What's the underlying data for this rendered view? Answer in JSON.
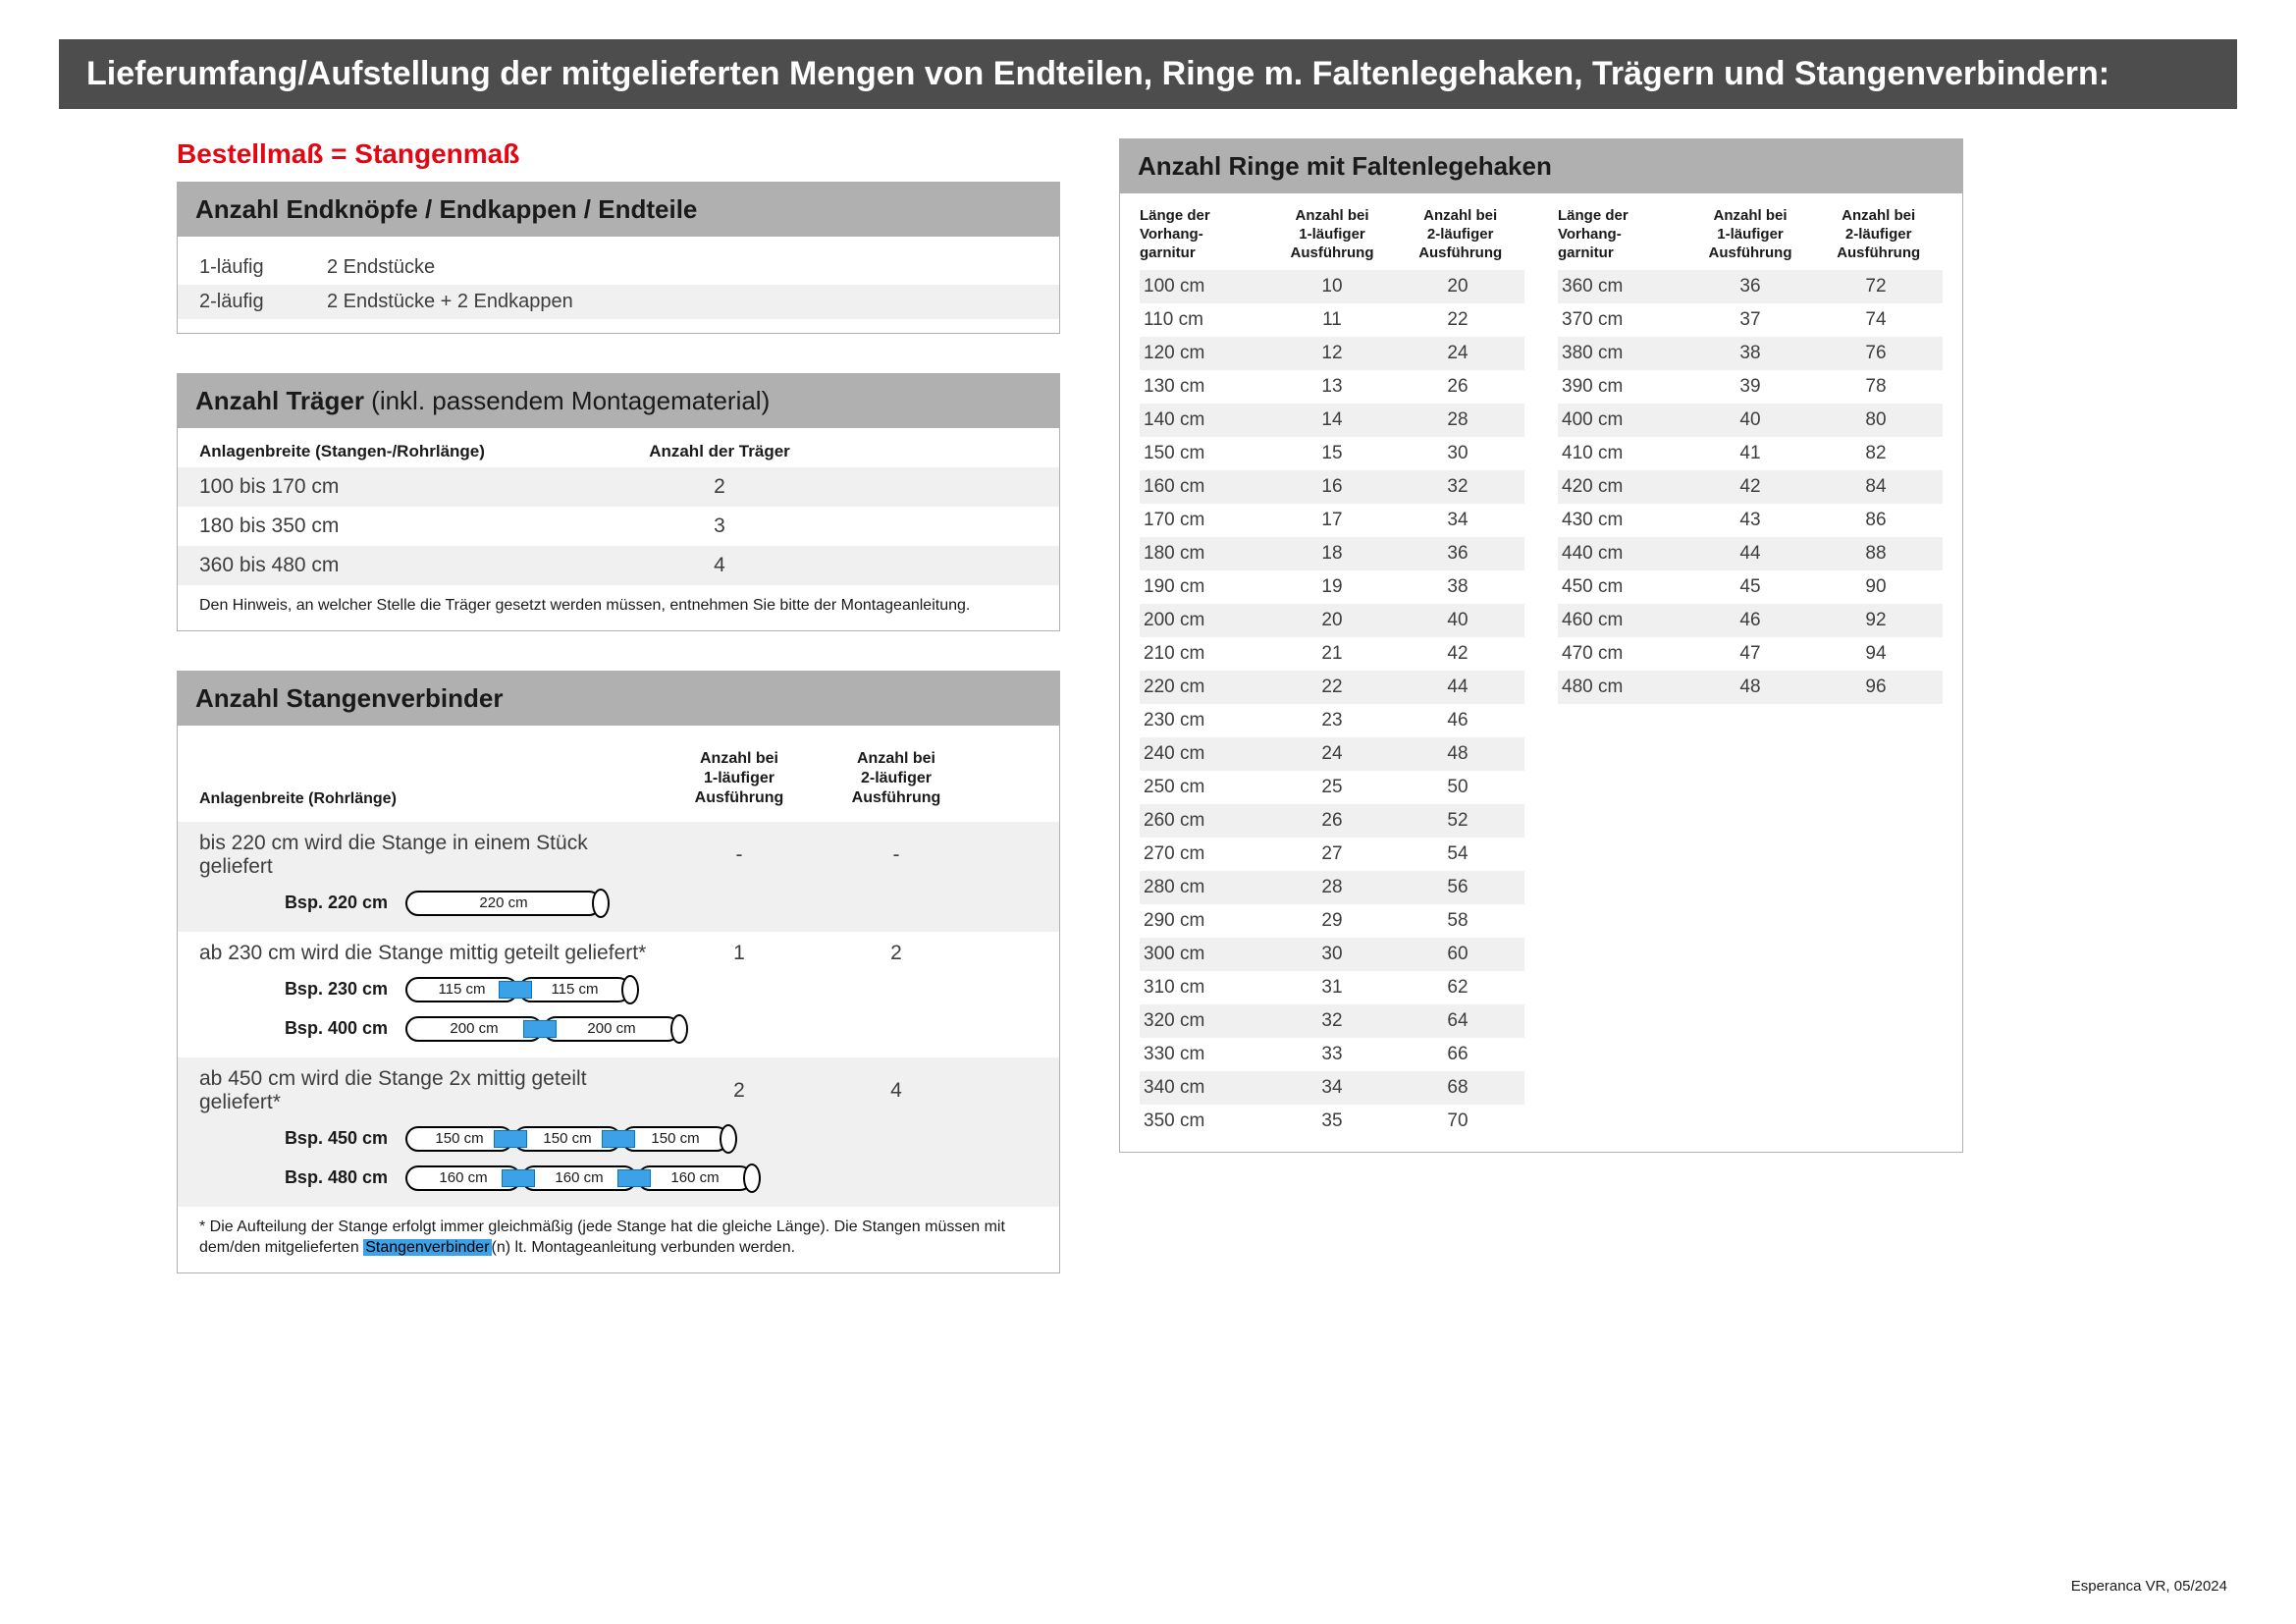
{
  "title_bar": "Lieferumfang/Aufstellung der mitgelieferten Mengen von Endteilen, Ringe m. Faltenlegehaken, Trägern und Stangenverbindern:",
  "red_heading": "Bestellmaß = Stangenmaß",
  "endteile": {
    "header": "Anzahl Endknöpfe / Endkappen / Endteile",
    "rows": [
      {
        "c1": "1-läufig",
        "c2": "2 Endstücke"
      },
      {
        "c1": "2-läufig",
        "c2": "2 Endstücke + 2 Endkappen"
      }
    ]
  },
  "traeger": {
    "header_bold": "Anzahl Träger",
    "header_thin": " (inkl. passendem Montagematerial)",
    "col1": "Anlagenbreite (Stangen-/Rohrlänge)",
    "col2": "Anzahl der Träger",
    "rows": [
      {
        "c1": "100 bis 170 cm",
        "c2": "2"
      },
      {
        "c1": "180 bis 350 cm",
        "c2": "3"
      },
      {
        "c1": "360 bis 480 cm",
        "c2": "4"
      }
    ],
    "footnote": "Den Hinweis, an welcher Stelle die Träger gesetzt werden müssen, entnehmen Sie bitte der Montageanleitung."
  },
  "sv": {
    "header": "Anzahl Stangenverbinder",
    "h1": "Anlagenbreite (Rohrlänge)",
    "h2": "Anzahl bei\n1-läufiger\nAusführung",
    "h3": "Anzahl bei\n2-läufiger\nAusführung",
    "blocks": [
      {
        "desc": "bis 220 cm wird die Stange in einem Stück geliefert",
        "v1": "-",
        "v2": "-",
        "examples": [
          {
            "label": "Bsp. 220 cm",
            "segs": [
              "220 cm"
            ],
            "seg_w": [
              200
            ]
          }
        ]
      },
      {
        "desc": "ab 230 cm wird die Stange mittig geteilt geliefert*",
        "v1": "1",
        "v2": "2",
        "examples": [
          {
            "label": "Bsp. 230 cm",
            "segs": [
              "115 cm",
              "115 cm"
            ],
            "seg_w": [
              115,
              115
            ]
          },
          {
            "label": "Bsp. 400 cm",
            "segs": [
              "200 cm",
              "200 cm"
            ],
            "seg_w": [
              140,
              140
            ]
          }
        ]
      },
      {
        "desc": "ab 450 cm wird die Stange 2x mittig geteilt geliefert*",
        "v1": "2",
        "v2": "4",
        "examples": [
          {
            "label": "Bsp. 450 cm",
            "segs": [
              "150 cm",
              "150 cm",
              "150 cm"
            ],
            "seg_w": [
              110,
              110,
              110
            ]
          },
          {
            "label": "Bsp. 480 cm",
            "segs": [
              "160 cm",
              "160 cm",
              "160 cm"
            ],
            "seg_w": [
              118,
              118,
              118
            ]
          }
        ]
      }
    ],
    "footnote_pre": "* Die Aufteilung der Stange erfolgt immer gleichmäßig (jede Stange hat die gleiche Länge). Die Stangen müssen mit dem/den mitgelieferten ",
    "footnote_hl": "Stangenverbinder",
    "footnote_post": "(n) lt. Montageanleitung verbunden werden."
  },
  "ringe": {
    "header": "Anzahl Ringe mit Faltenlegehaken",
    "h1": "Länge der\nVorhang-\ngarnitur",
    "h2": "Anzahl bei\n1-läufiger\nAusführung",
    "h3": "Anzahl bei\n2-läufiger\nAusführung",
    "left_rows": [
      [
        "100 cm",
        "10",
        "20"
      ],
      [
        "110 cm",
        "11",
        "22"
      ],
      [
        "120 cm",
        "12",
        "24"
      ],
      [
        "130 cm",
        "13",
        "26"
      ],
      [
        "140 cm",
        "14",
        "28"
      ],
      [
        "150 cm",
        "15",
        "30"
      ],
      [
        "160 cm",
        "16",
        "32"
      ],
      [
        "170 cm",
        "17",
        "34"
      ],
      [
        "180 cm",
        "18",
        "36"
      ],
      [
        "190 cm",
        "19",
        "38"
      ],
      [
        "200 cm",
        "20",
        "40"
      ],
      [
        "210 cm",
        "21",
        "42"
      ],
      [
        "220 cm",
        "22",
        "44"
      ],
      [
        "230 cm",
        "23",
        "46"
      ],
      [
        "240 cm",
        "24",
        "48"
      ],
      [
        "250 cm",
        "25",
        "50"
      ],
      [
        "260 cm",
        "26",
        "52"
      ],
      [
        "270 cm",
        "27",
        "54"
      ],
      [
        "280 cm",
        "28",
        "56"
      ],
      [
        "290 cm",
        "29",
        "58"
      ],
      [
        "300 cm",
        "30",
        "60"
      ],
      [
        "310 cm",
        "31",
        "62"
      ],
      [
        "320 cm",
        "32",
        "64"
      ],
      [
        "330 cm",
        "33",
        "66"
      ],
      [
        "340 cm",
        "34",
        "68"
      ],
      [
        "350 cm",
        "35",
        "70"
      ]
    ],
    "right_rows": [
      [
        "360 cm",
        "36",
        "72"
      ],
      [
        "370 cm",
        "37",
        "74"
      ],
      [
        "380 cm",
        "38",
        "76"
      ],
      [
        "390 cm",
        "39",
        "78"
      ],
      [
        "400 cm",
        "40",
        "80"
      ],
      [
        "410 cm",
        "41",
        "82"
      ],
      [
        "420 cm",
        "42",
        "84"
      ],
      [
        "430 cm",
        "43",
        "86"
      ],
      [
        "440 cm",
        "44",
        "88"
      ],
      [
        "450 cm",
        "45",
        "90"
      ],
      [
        "460 cm",
        "46",
        "92"
      ],
      [
        "470 cm",
        "47",
        "94"
      ],
      [
        "480 cm",
        "48",
        "96"
      ]
    ]
  },
  "footer": "Esperanca VR, 05/2024",
  "colors": {
    "title_bg": "#4d4d4d",
    "header_bg": "#b0b0b0",
    "stripe": "#f0f0f0",
    "red": "#e30613",
    "blue": "#3ca1e6"
  }
}
